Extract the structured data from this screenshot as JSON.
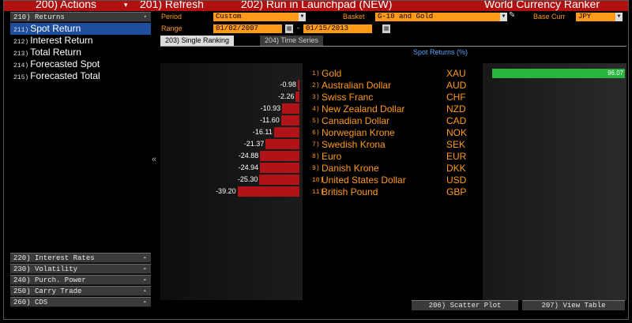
{
  "topbar": {
    "actions_label": "200) Actions",
    "arrow": "▾",
    "refresh_label": "201) Refresh",
    "run_label": "202) Run in Launchpad (NEW)",
    "title": "World Currency Ranker"
  },
  "sidebar": {
    "returns_header": "210) Returns",
    "returns_items": [
      {
        "code": "211)",
        "label": "Spot Return"
      },
      {
        "code": "212)",
        "label": "Interest Return"
      },
      {
        "code": "213)",
        "label": "Total Return"
      },
      {
        "code": "214)",
        "label": "Forecasted Spot"
      },
      {
        "code": "215)",
        "label": "Forecasted Total"
      }
    ],
    "sections": [
      "220) Interest Rates",
      "230) Volatility",
      "240) Purch. Power",
      "250) Carry Trade",
      "260) CDS"
    ],
    "collapse_glyph": "«"
  },
  "controls": {
    "period_label": "Period",
    "period_value": "Custom",
    "basket_label": "Basket",
    "basket_value": "G-10 and Gold",
    "base_curr_label": "Base Curr",
    "base_curr_value": "JPY",
    "range_label": "Range",
    "range_start": "01/02/2007",
    "range_sep": "-",
    "range_end": "01/15/2013"
  },
  "tabs": [
    {
      "label": "203) Single Ranking"
    },
    {
      "label": "204) Time Series"
    }
  ],
  "buttons": {
    "scatter": "206) Scatter Plot",
    "view_table": "207) View Table"
  },
  "chart_data": {
    "type": "bar",
    "title": "Spot Returns (%)",
    "categories": [
      "Gold",
      "Australian Dollar",
      "Swiss Franc",
      "New Zealand Dollar",
      "Canadian Dollar",
      "Norwegian Krone",
      "Swedish Krona",
      "Euro",
      "Danish Krone",
      "United States Dollar",
      "British Pound"
    ],
    "codes": [
      "XAU",
      "AUD",
      "CHF",
      "NZD",
      "CAD",
      "NOK",
      "SEK",
      "EUR",
      "DKK",
      "USD",
      "GBP"
    ],
    "ranks": [
      "1)",
      "2)",
      "3)",
      "4)",
      "5)",
      "6)",
      "7)",
      "8)",
      "9)",
      "10)",
      "11)"
    ],
    "values": [
      96.07,
      -0.98,
      -2.26,
      -10.93,
      -11.6,
      -16.11,
      -21.37,
      -24.88,
      -24.94,
      -25.3,
      -39.2
    ],
    "value_labels": [
      "96.07",
      "-0.98",
      "-2.26",
      "-10.93",
      "-11.60",
      "-16.11",
      "-21.37",
      "-24.88",
      "-24.94",
      "-25.30",
      "-39.20"
    ],
    "colors": {
      "negative": "#b01418",
      "positive": "#27b53f",
      "accent": "#ff9a1a",
      "title": "#5ea3ff"
    }
  }
}
